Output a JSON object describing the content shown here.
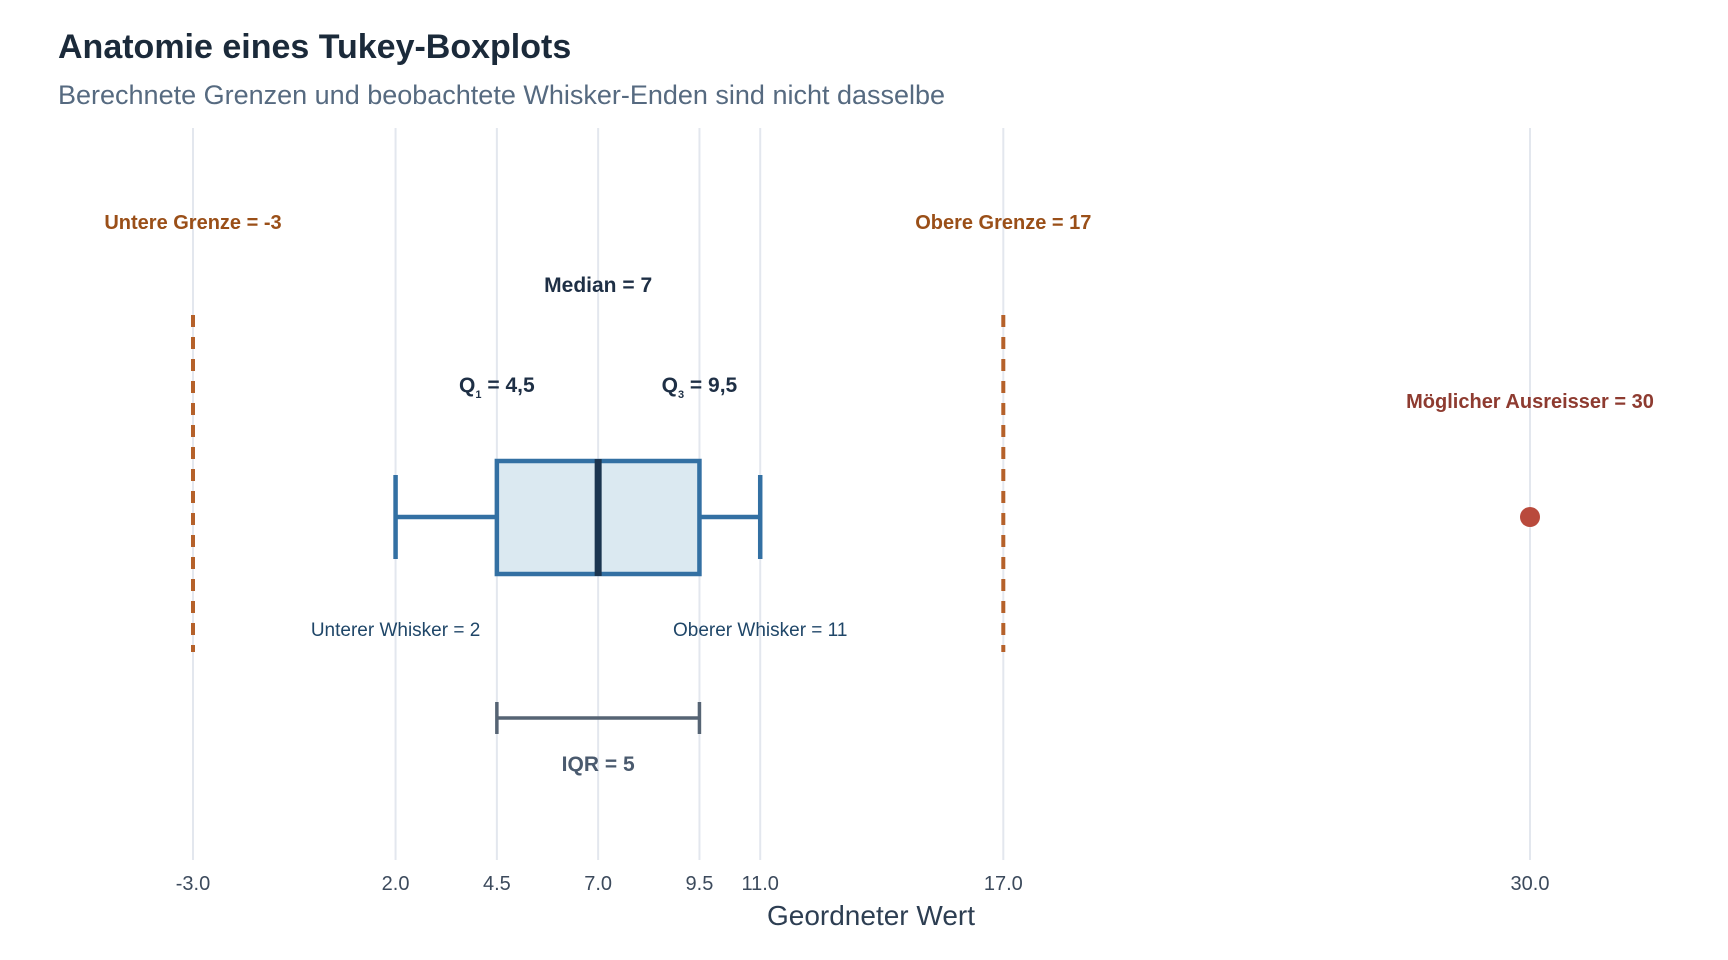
{
  "chart_data": {
    "type": "boxplot",
    "title": "Anatomie eines Tukey-Boxplots",
    "subtitle": "Berechnete Grenzen und beobachtete Whisker-Enden sind nicht dasselbe",
    "xlabel": "Geordneter Wert",
    "xlim": [
      -3.8,
      31.5
    ],
    "grid": "vertical",
    "xticks": [
      -3.0,
      2.0,
      4.5,
      7.0,
      9.5,
      11.0,
      17.0,
      30.0
    ],
    "xtick_labels": [
      "-3.0",
      "2.0",
      "4.5",
      "7.0",
      "9.5",
      "11.0",
      "17.0",
      "30.0"
    ],
    "box": {
      "q1": 4.5,
      "median": 7,
      "q3": 9.5,
      "whisker_low": 2,
      "whisker_high": 11,
      "iqr": 5,
      "lower_fence": -3,
      "upper_fence": 17,
      "outliers": [
        30
      ]
    },
    "annotations": {
      "lower_fence": "Untere Grenze = -3",
      "upper_fence": "Obere Grenze = 17",
      "median": "Median = 7",
      "q1_prefix": "Q",
      "q1_sub": "1",
      "q1_value": " = 4,5",
      "q3_prefix": "Q",
      "q3_sub": "3",
      "q3_value": " = 9,5",
      "whisker_low": "Unterer Whisker = 2",
      "whisker_high": "Oberer Whisker = 11",
      "iqr": "IQR = 5",
      "outlier": "Möglicher Ausreisser = 30"
    },
    "colors": {
      "box_fill": "#dbe9f1",
      "box_stroke": "#3370a3",
      "median": "#1b3550",
      "fence": "#b5612a",
      "iqr_bracket": "#566474",
      "outlier": "#b94a3c",
      "grid": "#e3e7ee"
    }
  }
}
